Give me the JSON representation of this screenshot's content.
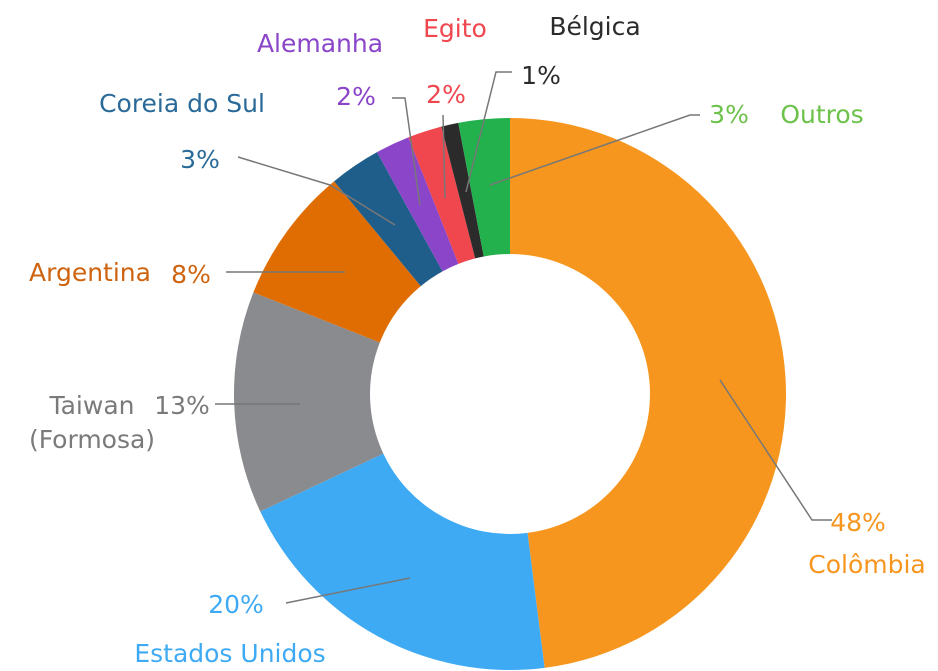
{
  "chart_data": {
    "type": "donut",
    "categories": [
      "Colômbia",
      "Estados Unidos",
      "Taiwan (Formosa)",
      "Argentina",
      "Coreia do Sul",
      "Alemanha",
      "Egito",
      "Bélgica",
      "Outros"
    ],
    "values": [
      48,
      20,
      13,
      8,
      3,
      2,
      2,
      1,
      3
    ],
    "value_labels": [
      "48%",
      "20%",
      "13%",
      "8%",
      "3%",
      "2%",
      "2%",
      "1%",
      "3%"
    ],
    "colors": [
      "#f7961f",
      "#3eaaf4",
      "#8a8b8e",
      "#e06d02",
      "#1f5e8a",
      "#8b45c9",
      "#f0464e",
      "#2b2b2b",
      "#22b14c"
    ],
    "label_colors": [
      "#f7961f",
      "#3eaaf4",
      "#7a7a7a",
      "#cf6410",
      "#2a6a98",
      "#8b45c9",
      "#f0464e",
      "#2b2b2b",
      "#6cc24a"
    ]
  }
}
